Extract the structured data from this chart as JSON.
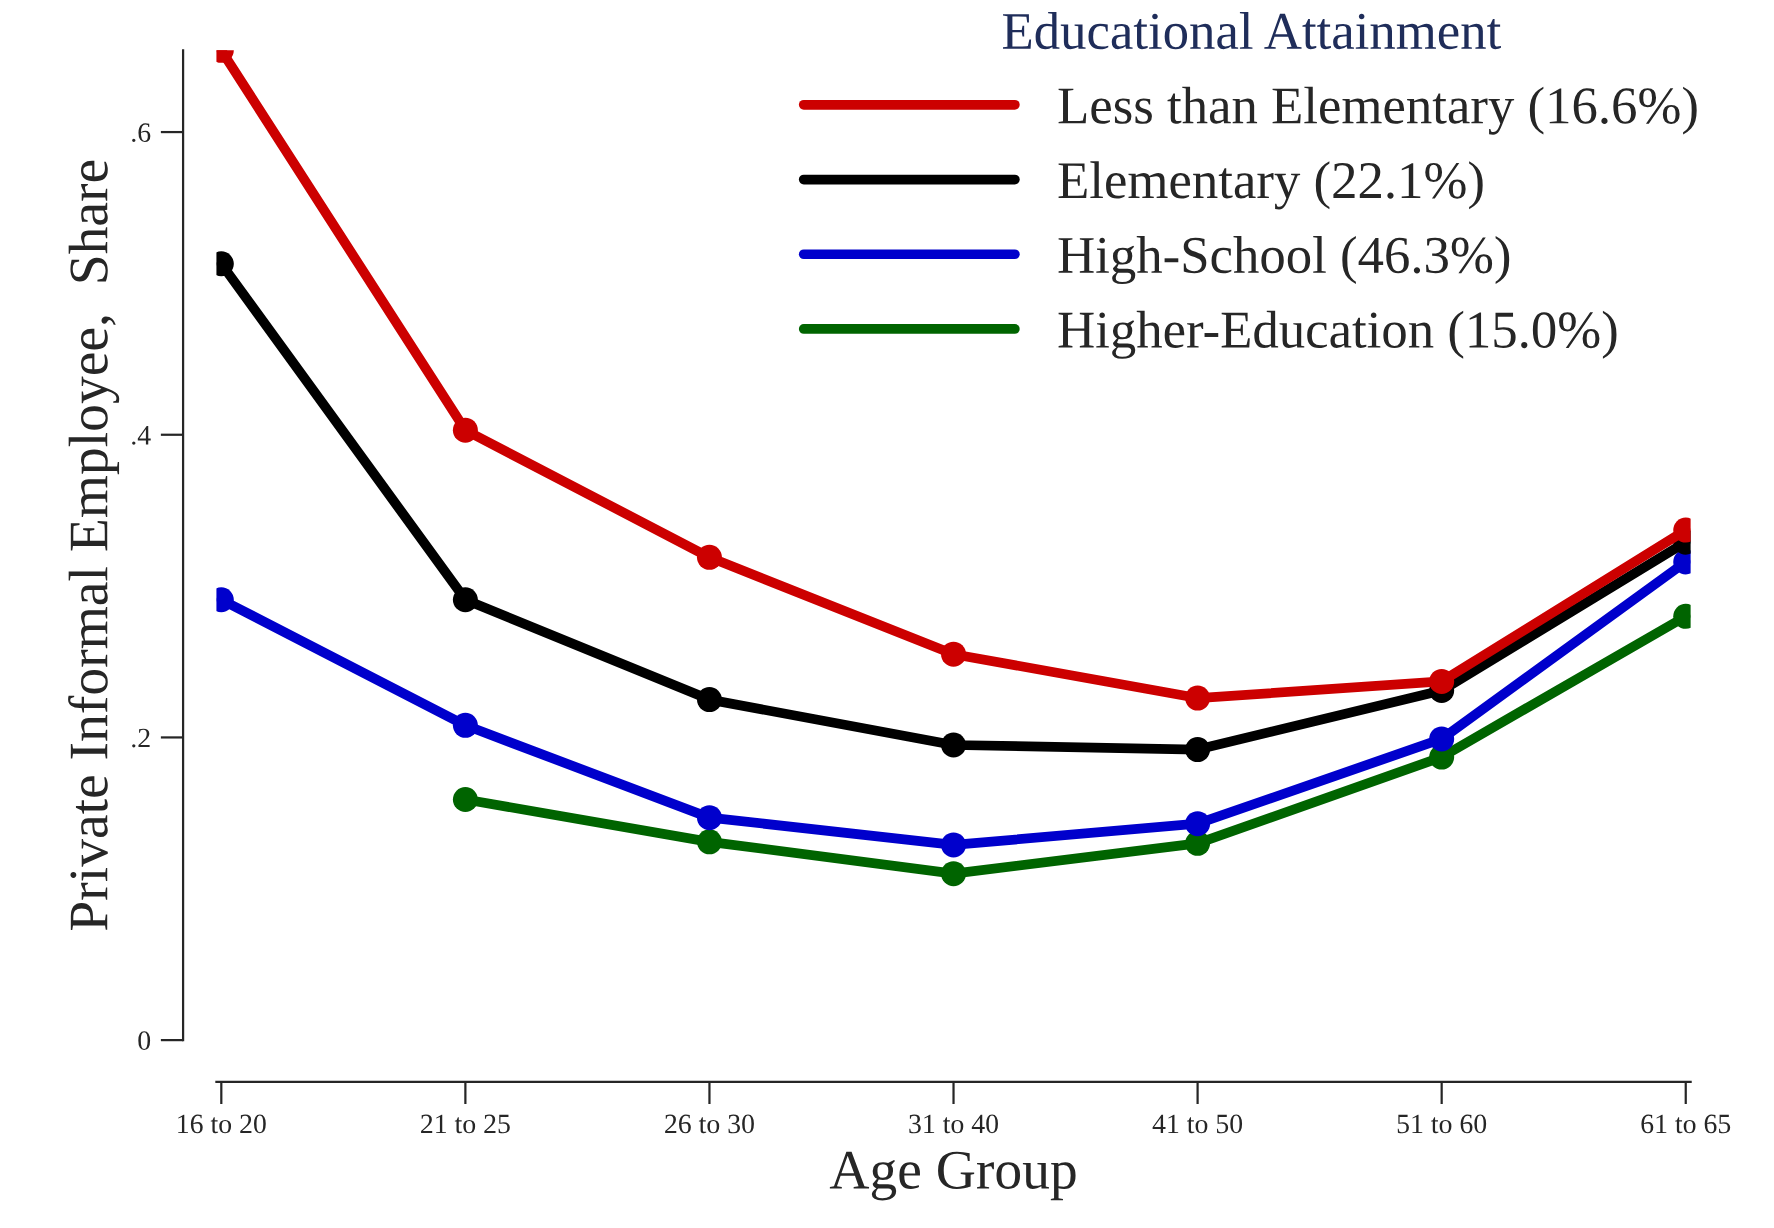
{
  "chart_data": {
    "type": "line",
    "xlabel": "Age Group",
    "ylabel": "Private Informal Employee,  Share",
    "legend_title": "Educational Attainment",
    "categories": [
      "16 to 20",
      "21 to 25",
      "26 to 30",
      "31 to 40",
      "41 to 50",
      "51 to 60",
      "61 to 65"
    ],
    "series": [
      {
        "name": "Less than Elementary (16.6%)",
        "color": "#cc0000",
        "values": [
          0.654,
          0.403,
          0.319,
          0.255,
          0.226,
          0.237,
          0.337
        ]
      },
      {
        "name": "Elementary (22.1%)",
        "color": "#000000",
        "values": [
          0.513,
          0.291,
          0.225,
          0.195,
          0.192,
          0.231,
          0.329
        ]
      },
      {
        "name": "High-School (46.3%)",
        "color": "#0000cc",
        "values": [
          0.291,
          0.208,
          0.147,
          0.129,
          0.143,
          0.199,
          0.316
        ]
      },
      {
        "name": "Higher-Education (15.0%)",
        "color": "#006400",
        "values": [
          null,
          0.159,
          0.131,
          0.11,
          0.13,
          0.187,
          0.28
        ]
      }
    ],
    "ylim": [
      0,
      0.654
    ],
    "yticks": [
      0,
      {
        "value": 0.2,
        "label": ".2"
      },
      {
        "value": 0.4,
        "label": ".4"
      },
      {
        "value": 0.6,
        "label": ".6"
      }
    ],
    "grid": false,
    "legend": "top right",
    "marker": "circle",
    "line_style": "solid"
  }
}
